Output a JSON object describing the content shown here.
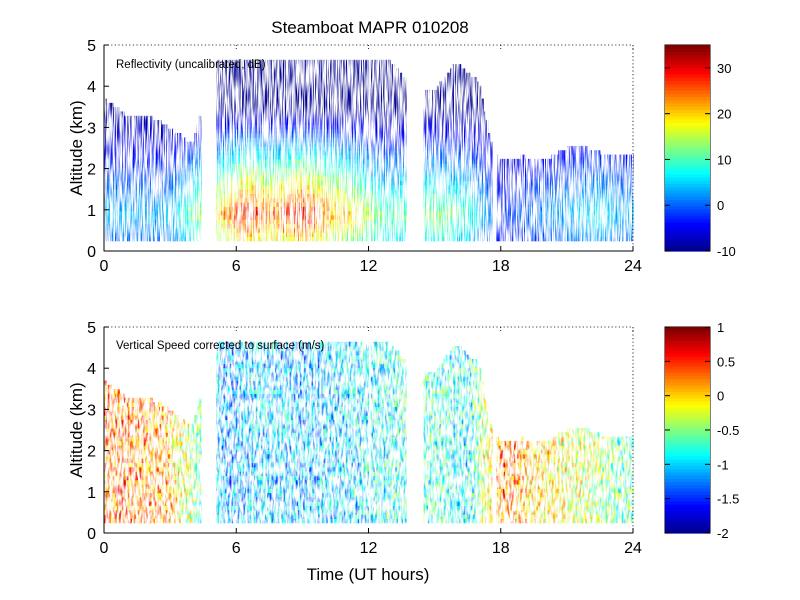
{
  "figure_title": "Steamboat MAPR 010208",
  "colors": {
    "jet": [
      "#00008f",
      "#0000ff",
      "#0080ff",
      "#00ffff",
      "#80ff80",
      "#ffff00",
      "#ff8000",
      "#ff0000",
      "#800000"
    ],
    "cloud_gap": "#ffffff"
  },
  "chart_data": [
    {
      "type": "heatmap",
      "panel": "top",
      "annotation": "Reflectivity (uncalibrated, dB)",
      "xlabel": "",
      "ylabel": "Altitude (km)",
      "xlim": [
        0,
        24
      ],
      "ylim": [
        0,
        5
      ],
      "xticks": [
        0,
        6,
        12,
        18,
        24
      ],
      "yticks": [
        0,
        1,
        2,
        3,
        4,
        5
      ],
      "grid": "dotted-frame",
      "colorbar": {
        "range": [
          -10,
          35
        ],
        "ticks": [
          30,
          20,
          10,
          0,
          -10
        ]
      },
      "echo_segments_time_hours": [
        [
          0,
          4.4
        ],
        [
          5.1,
          12.0
        ],
        [
          12.1,
          13.7
        ],
        [
          14.5,
          17.6
        ],
        [
          17.8,
          24.0
        ]
      ],
      "echo_top_km": [
        [
          0,
          3.7
        ],
        [
          1,
          3.3
        ],
        [
          2,
          3.3
        ],
        [
          3,
          3.0
        ],
        [
          4,
          2.6
        ],
        [
          5,
          4.6
        ],
        [
          6,
          4.6
        ],
        [
          7,
          4.6
        ],
        [
          8,
          4.6
        ],
        [
          9,
          4.6
        ],
        [
          10,
          4.6
        ],
        [
          11,
          4.6
        ],
        [
          12,
          4.6
        ],
        [
          13,
          4.6
        ],
        [
          14,
          4.0
        ],
        [
          15,
          3.9
        ],
        [
          16,
          4.6
        ],
        [
          17,
          4.1
        ],
        [
          17.6,
          2.5
        ],
        [
          18,
          2.2
        ],
        [
          19,
          2.3
        ],
        [
          20,
          2.2
        ],
        [
          21,
          2.5
        ],
        [
          22,
          2.5
        ],
        [
          23,
          2.3
        ],
        [
          24,
          2.3
        ]
      ],
      "representative_peak_dB": [
        [
          1,
          5
        ],
        [
          3,
          5
        ],
        [
          5.5,
          25
        ],
        [
          6.5,
          33
        ],
        [
          7.5,
          27
        ],
        [
          9,
          33
        ],
        [
          10.3,
          26
        ],
        [
          11.3,
          22
        ],
        [
          12.8,
          12
        ],
        [
          15,
          15
        ],
        [
          16.5,
          12
        ],
        [
          18,
          -2
        ],
        [
          20,
          3
        ],
        [
          22.5,
          8
        ],
        [
          23.5,
          5
        ]
      ]
    },
    {
      "type": "heatmap",
      "panel": "bottom",
      "annotation": "Vertical Speed corrected to surface (m/s)",
      "xlabel": "Time (UT hours)",
      "ylabel": "Altitude (km)",
      "xlim": [
        0,
        24
      ],
      "ylim": [
        0,
        5
      ],
      "xticks": [
        0,
        6,
        12,
        18,
        24
      ],
      "yticks": [
        0,
        1,
        2,
        3,
        4,
        5
      ],
      "grid": "dotted-frame",
      "colorbar": {
        "range": [
          -2,
          1
        ],
        "ticks": [
          1,
          0.5,
          0,
          -0.5,
          -1,
          -1.5,
          -2
        ]
      },
      "representative_speed_ms": [
        [
          1,
          0.3
        ],
        [
          3,
          0.1
        ],
        [
          5.5,
          -1.2
        ],
        [
          7,
          -1.0
        ],
        [
          9,
          -1.1
        ],
        [
          11,
          -1.0
        ],
        [
          13,
          -0.8
        ],
        [
          15,
          -0.7
        ],
        [
          16.5,
          -0.9
        ],
        [
          18,
          0.3
        ],
        [
          20,
          -0.1
        ],
        [
          22,
          -0.3
        ],
        [
          23.5,
          -0.6
        ]
      ]
    }
  ]
}
